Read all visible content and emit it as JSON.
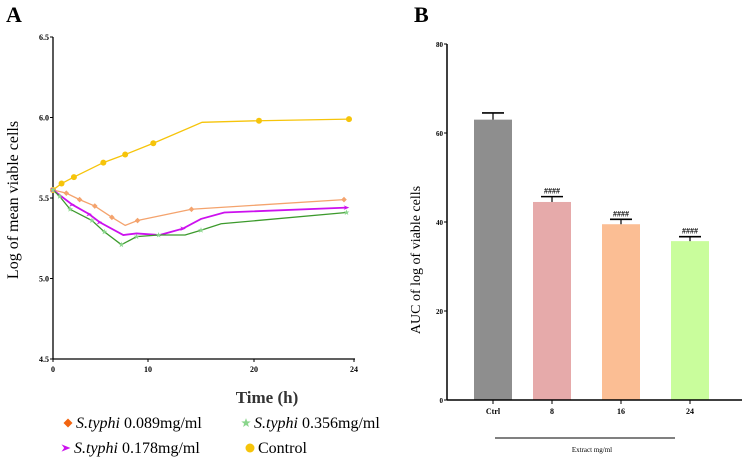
{
  "chart_data": [
    {
      "panel_label": "A",
      "type": "line",
      "xlabel": "Time (h)",
      "ylabel": "Log of mean viable cells",
      "xlim": [
        0,
        24
      ],
      "ylim": [
        4.5,
        6.5
      ],
      "xticks": [
        "0",
        "10",
        "20",
        "24"
      ],
      "yticks": [
        "4.5",
        "5.0",
        "5.5",
        "6.0",
        "6.5"
      ],
      "grid": false,
      "legend_position": "bottom",
      "series": [
        {
          "name_italic": "S.typhi",
          "name_rest": " 0.089mg/ml",
          "color": "#f4a36d",
          "legend_color": "#f2640f",
          "marker": "diamond",
          "x": [
            0,
            1.4,
            2.8,
            4.4,
            6.2,
            7.6,
            8.9,
            14.1,
            23.6
          ],
          "y": [
            5.55,
            5.53,
            5.49,
            5.45,
            5.38,
            5.33,
            5.36,
            5.43,
            5.49
          ],
          "has_marker": [
            1,
            1,
            1,
            1,
            1,
            0,
            1,
            1,
            1
          ]
        },
        {
          "name_italic": "S.typhi",
          "name_rest": " 0.356mg/ml",
          "color": "#3c9a2c",
          "legend_color": "#8ad68c",
          "marker": "star",
          "x": [
            0,
            0.7,
            1.8,
            4.1,
            5.4,
            7.2,
            8.8,
            11.0,
            13.5,
            15.0,
            16.9,
            23.7
          ],
          "y": [
            5.55,
            5.51,
            5.43,
            5.36,
            5.29,
            5.21,
            5.26,
            5.27,
            5.27,
            5.3,
            5.34,
            5.41
          ],
          "has_marker": [
            1,
            1,
            1,
            1,
            1,
            1,
            1,
            1,
            0,
            1,
            0,
            1
          ]
        },
        {
          "name_italic": "S.typhi",
          "name_rest": "  0.178mg/ml",
          "color": "#cc11ee",
          "legend_color": "#cc11ee",
          "marker": "arrow",
          "x": [
            0,
            2.0,
            3.8,
            4.9,
            7.4,
            8.8,
            11.1,
            13.3,
            15.0,
            17.2,
            23.7
          ],
          "y": [
            5.55,
            5.46,
            5.4,
            5.35,
            5.27,
            5.28,
            5.27,
            5.31,
            5.37,
            5.41,
            5.44
          ],
          "has_marker": [
            1,
            1,
            1,
            1,
            0,
            0,
            0,
            1,
            0,
            0,
            1
          ]
        },
        {
          "name_italic": "",
          "name_rest": "Control",
          "color": "#f6c40a",
          "legend_color": "#f6c40a",
          "marker": "circle",
          "x": [
            0,
            0.9,
            2.2,
            5.3,
            7.6,
            10.5,
            15.1,
            20.2,
            23.8
          ],
          "y": [
            5.55,
            5.59,
            5.63,
            5.72,
            5.77,
            5.84,
            5.97,
            5.98,
            5.99
          ],
          "has_marker": [
            1,
            1,
            1,
            1,
            1,
            1,
            0,
            1,
            1
          ]
        }
      ]
    },
    {
      "panel_label": "B",
      "type": "bar",
      "ylabel": "AUC of log of viable cells",
      "xlabel": "Extract mg/ml",
      "ylim": [
        0,
        80
      ],
      "yticks": [
        "0",
        "20",
        "40",
        "60",
        "80"
      ],
      "categories": [
        "Ctrl",
        "8",
        "16",
        "24"
      ],
      "values": [
        63,
        44.5,
        39.5,
        35.7
      ],
      "errors": [
        1.5,
        1.2,
        1.1,
        1.0
      ],
      "annotations": [
        "",
        "####",
        "####",
        "####"
      ],
      "colors": [
        "#8e8e8e",
        "#e6aaaa",
        "#fbbe94",
        "#c9fd9c"
      ],
      "grid": false
    }
  ]
}
